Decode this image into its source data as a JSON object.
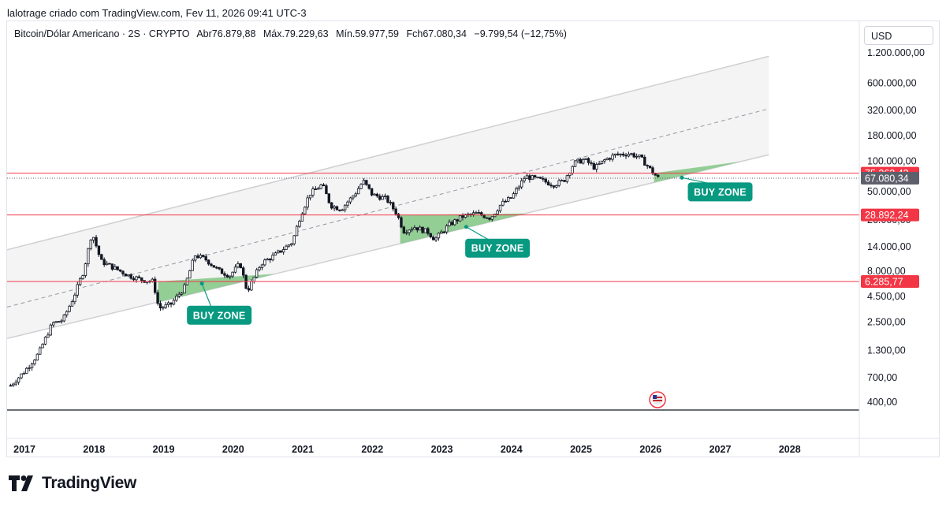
{
  "header": {
    "attribution": "lalotrage criado com TradingView.com, Fev 11, 2026 09:41 UTC-3"
  },
  "symbol": {
    "name": "Bitcoin/Dólar Americano · 2S · CRYPTO",
    "open": "Abr76.879,88",
    "high": "Máx.79.229,63",
    "low": "Mín.59.977,59",
    "close": "Fch67.080,34",
    "change": "−9.799,54 (−12,75%)"
  },
  "currency_button": "USD",
  "brand": {
    "name": "TradingView",
    "logo_icon": "tradingview-logo-icon"
  },
  "colors": {
    "up": "#089981",
    "down": "#131722",
    "support": "#f23645",
    "zone": "#81c784",
    "label": "#089981"
  },
  "chart_data": {
    "type": "candlestick",
    "y_scale": "log",
    "ylim": [
      330,
      1400000
    ],
    "xlim": [
      2016.75,
      2029.0
    ],
    "x_ticks": [
      "2017",
      "2018",
      "2019",
      "2020",
      "2021",
      "2022",
      "2023",
      "2024",
      "2025",
      "2026",
      "2027",
      "2028"
    ],
    "y_ticks": [
      {
        "value": 1200000,
        "label": "1.200.000,00"
      },
      {
        "value": 600000,
        "label": "600.000,00"
      },
      {
        "value": 320000,
        "label": "320.000,00"
      },
      {
        "value": 180000,
        "label": "180.000,00"
      },
      {
        "value": 100000,
        "label": "100.000,00"
      },
      {
        "value": 50000,
        "label": "50.000,00"
      },
      {
        "value": 26000,
        "label": "26.000,00"
      },
      {
        "value": 14000,
        "label": "14.000,00"
      },
      {
        "value": 8000,
        "label": "8.000,00"
      },
      {
        "value": 4500,
        "label": "4.500,00"
      },
      {
        "value": 2500,
        "label": "2.500,00"
      },
      {
        "value": 1300,
        "label": "1.300,00"
      },
      {
        "value": 700,
        "label": "700,00"
      },
      {
        "value": 400,
        "label": "400,00"
      }
    ],
    "price_path": [
      [
        2016.8,
        580
      ],
      [
        2017.0,
        800
      ],
      [
        2017.2,
        1200
      ],
      [
        2017.4,
        2400
      ],
      [
        2017.55,
        2600
      ],
      [
        2017.7,
        4300
      ],
      [
        2017.85,
        8000
      ],
      [
        2017.97,
        19500
      ],
      [
        2018.1,
        10000
      ],
      [
        2018.3,
        8500
      ],
      [
        2018.5,
        7200
      ],
      [
        2018.7,
        6500
      ],
      [
        2018.85,
        6300
      ],
      [
        2018.93,
        3400
      ],
      [
        2019.1,
        3700
      ],
      [
        2019.3,
        5500
      ],
      [
        2019.45,
        11500
      ],
      [
        2019.6,
        10500
      ],
      [
        2019.8,
        8000
      ],
      [
        2019.95,
        7200
      ],
      [
        2020.1,
        9500
      ],
      [
        2020.2,
        5000
      ],
      [
        2020.4,
        9500
      ],
      [
        2020.6,
        11500
      ],
      [
        2020.85,
        15500
      ],
      [
        2020.97,
        29000
      ],
      [
        2021.1,
        47000
      ],
      [
        2021.28,
        58000
      ],
      [
        2021.4,
        36000
      ],
      [
        2021.55,
        33000
      ],
      [
        2021.75,
        47000
      ],
      [
        2021.87,
        63000
      ],
      [
        2022.0,
        46000
      ],
      [
        2022.2,
        42000
      ],
      [
        2022.35,
        30000
      ],
      [
        2022.45,
        20000
      ],
      [
        2022.6,
        22000
      ],
      [
        2022.8,
        19500
      ],
      [
        2022.9,
        16500
      ],
      [
        2023.1,
        23000
      ],
      [
        2023.3,
        28000
      ],
      [
        2023.5,
        30000
      ],
      [
        2023.7,
        27000
      ],
      [
        2023.85,
        37000
      ],
      [
        2024.0,
        43000
      ],
      [
        2024.2,
        70000
      ],
      [
        2024.4,
        65000
      ],
      [
        2024.6,
        58000
      ],
      [
        2024.75,
        63000
      ],
      [
        2024.9,
        95000
      ],
      [
        2025.05,
        103000
      ],
      [
        2025.2,
        85000
      ],
      [
        2025.35,
        103000
      ],
      [
        2025.5,
        115000
      ],
      [
        2025.7,
        118000
      ],
      [
        2025.85,
        108000
      ],
      [
        2025.95,
        90000
      ],
      [
        2026.03,
        76880
      ],
      [
        2026.11,
        67080
      ]
    ],
    "channel": {
      "start": {
        "x": 2016.75
      },
      "end": {
        "x": 2027.7
      },
      "upper": [
        13000,
        1100000
      ],
      "middle": [
        3500,
        330000
      ],
      "lower": [
        1700,
        115000
      ]
    },
    "price_lines": [
      {
        "value": 75262.43,
        "label": "75.262,43",
        "color": "#f23645",
        "style": "solid"
      },
      {
        "value": 67080.34,
        "label": "67.080,34",
        "color": "#5d606b",
        "style": "dotted"
      },
      {
        "value": 28892.24,
        "label": "28.892,24",
        "color": "#f23645",
        "style": "solid"
      },
      {
        "value": 6285.77,
        "label": "6.285,77",
        "color": "#f23645",
        "style": "solid"
      }
    ],
    "buy_zones": [
      {
        "label": "BUY ZONE",
        "x0": 2018.92,
        "x1": 2020.6,
        "line": 6285.77
      },
      {
        "label": "BUY ZONE",
        "x0": 2022.4,
        "x1": 2024.2,
        "line": 28892.24
      },
      {
        "label": "BUY ZONE",
        "x0": 2026.05,
        "x1": 2027.3,
        "line": 75262.43
      }
    ],
    "annotations": [
      {
        "text": "BUY ZONE",
        "anchor": [
          2019.55,
          6000
        ],
        "x": 2019.8,
        "y": 2900
      },
      {
        "text": "BUY ZONE",
        "anchor": [
          2023.35,
          22000
        ],
        "x": 2023.8,
        "y": 13500
      },
      {
        "text": "BUY ZONE",
        "anchor": [
          2026.45,
          68000
        ],
        "x": 2027.0,
        "y": 49000
      }
    ]
  }
}
